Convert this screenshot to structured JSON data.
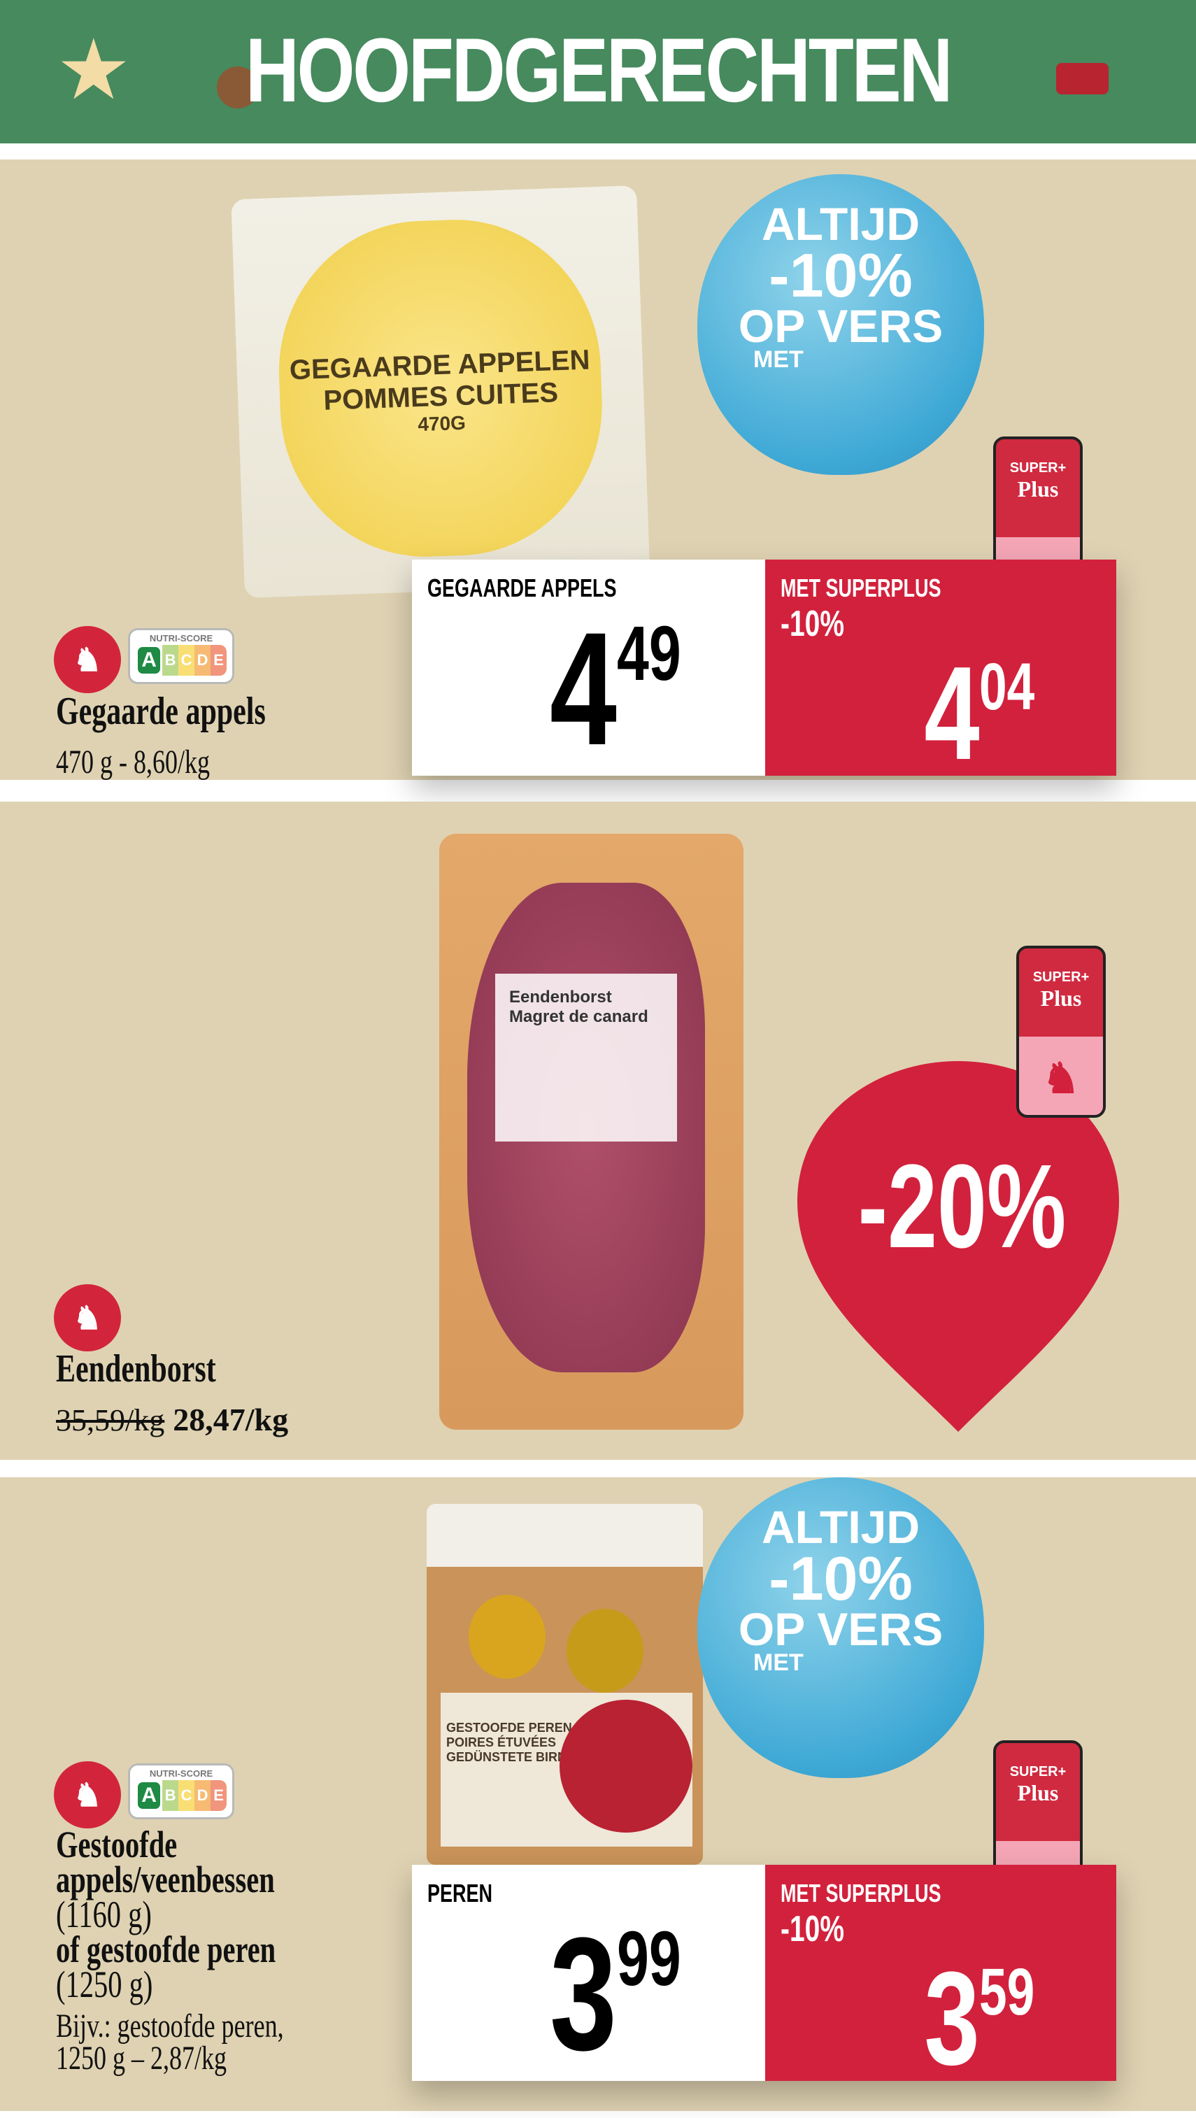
{
  "header": {
    "title": "HOOFDGERECHTEN"
  },
  "colors": {
    "header_green": "#468a5e",
    "panel_beige": "#dfd2b2",
    "promo_red": "#d2213c",
    "balloon_blue": "#3fa9d6"
  },
  "balloon": {
    "line1": "ALTIJD",
    "line2": "-10%",
    "line3": "OP VERS",
    "line4": "MET",
    "nutri_label": "NUTRI-SCORE"
  },
  "nutri_score": {
    "label": "NUTRI-SCORE",
    "grades": [
      "A",
      "B",
      "C",
      "D",
      "E"
    ]
  },
  "superplus": {
    "line1": "SUPER+",
    "line2": "Plus"
  },
  "products": [
    {
      "package_text": [
        "GEGAARDE APPELEN",
        "POMMES CUITES"
      ],
      "package_weight": "470G",
      "nutri_grade": "A",
      "name": "Gegaarde appels",
      "detail": "470 g - 8,60/kg",
      "price_label": "GEGAARDE APPELS",
      "price_main": "4",
      "price_cents": "49",
      "promo_label": "MET SUPERPLUS",
      "promo_pct": "-10%",
      "promo_main": "4",
      "promo_cents": "04"
    },
    {
      "package_text": [
        "Eendenborst",
        "Magret de canard"
      ],
      "name": "Eendenborst",
      "old_price": "35,59/kg",
      "new_price": "28,47/kg",
      "discount": "-20%"
    },
    {
      "package_text": [
        "GESTOOFDE PEREN",
        "POIRES ÉTUVÉES",
        "GEDÜNSTETE BIRNEN"
      ],
      "nutri_grade": "A",
      "name_lines": [
        "Gestoofde",
        "appels/veenbessen"
      ],
      "size1": "(1160 g)",
      "name_line3": "of gestoofde peren",
      "size2": "(1250 g)",
      "example": [
        "Bijv.: gestoofde peren,",
        "1250 g – 2,87/kg"
      ],
      "price_label": "PEREN",
      "price_main": "3",
      "price_cents": "99",
      "promo_label": "MET SUPERPLUS",
      "promo_pct": "-10%",
      "promo_main": "3",
      "promo_cents": "59"
    }
  ]
}
